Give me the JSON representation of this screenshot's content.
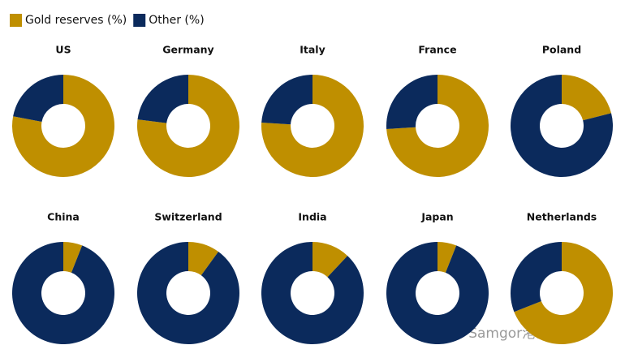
{
  "chart_data": {
    "type": "donut",
    "categories": [
      "US",
      "Germany",
      "Italy",
      "France",
      "Poland",
      "China",
      "Switzerland",
      "India",
      "Japan",
      "Netherlands"
    ],
    "series": [
      {
        "name": "Gold reserves (%)",
        "color": "#bf8f00",
        "values": [
          78,
          77,
          76,
          74,
          21,
          6,
          10,
          12,
          6,
          69
        ]
      },
      {
        "name": "Other (%)",
        "color": "#0b2a5c",
        "values": [
          22,
          23,
          24,
          26,
          79,
          94,
          90,
          88,
          94,
          31
        ]
      }
    ]
  },
  "watermark": "公众号 · Samgor港研所"
}
